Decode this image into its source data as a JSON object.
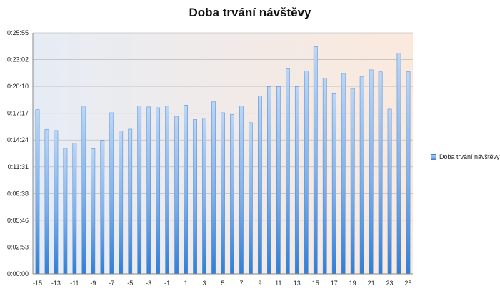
{
  "chart_data": {
    "type": "bar",
    "title": "Doba trvání návštěvy",
    "xlabel": "",
    "ylabel": "",
    "y_unit": "seconds",
    "ylim_seconds": [
      0,
      1555
    ],
    "y_tick_labels": [
      "0:00:00",
      "0:02:53",
      "0:05:46",
      "0:08:38",
      "0:11:31",
      "0:14:24",
      "0:17:17",
      "0:20:10",
      "0:23:02",
      "0:25:55"
    ],
    "x_tick_labels": [
      "-15",
      "-13",
      "-11",
      "-9",
      "-7",
      "-5",
      "-3",
      "-1",
      "1",
      "3",
      "5",
      "7",
      "9",
      "11",
      "13",
      "15",
      "17",
      "19",
      "21",
      "23",
      "25"
    ],
    "categories": [
      -15,
      -14,
      -13,
      -12,
      -11,
      -10,
      -9,
      -8,
      -7,
      -6,
      -5,
      -4,
      -3,
      -2,
      -1,
      0,
      1,
      2,
      3,
      4,
      5,
      6,
      7,
      8,
      9,
      10,
      11,
      12,
      13,
      14,
      15,
      16,
      17,
      18,
      19,
      20,
      21,
      22,
      23,
      24,
      25
    ],
    "series": [
      {
        "name": "Doba trvání návštěvy",
        "values": [
          1060,
          932,
          925,
          810,
          843,
          1082,
          808,
          862,
          1040,
          922,
          934,
          1083,
          1077,
          1072,
          1082,
          1017,
          1089,
          996,
          1004,
          1110,
          1040,
          1028,
          1084,
          976,
          1148,
          1208,
          1208,
          1324,
          1208,
          1310,
          1466,
          1263,
          1162,
          1293,
          1196,
          1271,
          1316,
          1303,
          1063,
          1424,
          1304
        ]
      }
    ],
    "legend_position": "right",
    "grid": true,
    "colors": {
      "bar_top": "#bcd6f6",
      "bar_bottom": "#2f7fd8",
      "grid": "#c0c0c0",
      "bg_left": "#e6ecf5",
      "bg_right": "#fbe9dc"
    }
  }
}
